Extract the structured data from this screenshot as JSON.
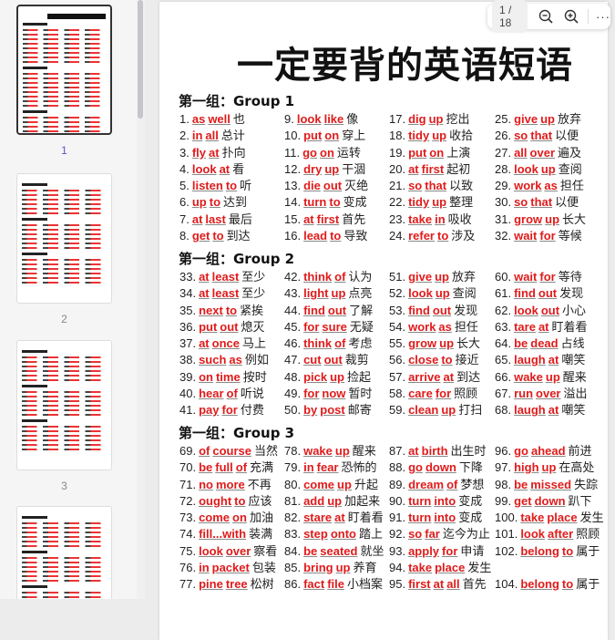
{
  "sidebar": {
    "pages": [
      {
        "label": "1",
        "selected": true
      },
      {
        "label": "2"
      },
      {
        "label": "3"
      },
      {
        "label": ""
      }
    ]
  },
  "document": {
    "title": "一定要背的英语短语",
    "groups": [
      {
        "heading": "第一组：Group 1",
        "columns": [
          [
            {
              "n": "1.",
              "w": [
                "as",
                "well"
              ],
              "cn": "也"
            },
            {
              "n": "2.",
              "w": [
                "in",
                "all"
              ],
              "cn": "总计"
            },
            {
              "n": "3.",
              "w": [
                "fly",
                "at"
              ],
              "cn": "扑向"
            },
            {
              "n": "4.",
              "w": [
                "look",
                "at"
              ],
              "cn": "看"
            },
            {
              "n": "5.",
              "w": [
                "listen",
                "to"
              ],
              "cn": "听"
            },
            {
              "n": "6.",
              "w": [
                "up",
                "to"
              ],
              "cn": "达到"
            },
            {
              "n": "7.",
              "w": [
                "at",
                "last"
              ],
              "cn": "最后"
            },
            {
              "n": "8.",
              "w": [
                "get",
                "to"
              ],
              "cn": "到达"
            }
          ],
          [
            {
              "n": "9.",
              "w": [
                "look",
                "like"
              ],
              "cn": "像"
            },
            {
              "n": "10.",
              "w": [
                "put",
                "on"
              ],
              "cn": "穿上"
            },
            {
              "n": "11.",
              "w": [
                "go",
                "on"
              ],
              "cn": "运转"
            },
            {
              "n": "12.",
              "w": [
                "dry",
                "up"
              ],
              "cn": "干涸"
            },
            {
              "n": "13.",
              "w": [
                "die",
                "out"
              ],
              "cn": "灭绝"
            },
            {
              "n": "14.",
              "w": [
                "turn",
                "to"
              ],
              "cn": "变成"
            },
            {
              "n": "15.",
              "w": [
                "at",
                "first"
              ],
              "cn": "首先"
            },
            {
              "n": "16.",
              "w": [
                "lead",
                "to"
              ],
              "cn": "导致"
            }
          ],
          [
            {
              "n": "17.",
              "w": [
                "dig",
                "up"
              ],
              "cn": "挖出"
            },
            {
              "n": "18.",
              "w": [
                "tidy",
                "up"
              ],
              "cn": "收拾"
            },
            {
              "n": "19.",
              "w": [
                "put",
                "on"
              ],
              "cn": "上演"
            },
            {
              "n": "20.",
              "w": [
                "at",
                "first"
              ],
              "cn": "起初"
            },
            {
              "n": "21.",
              "w": [
                "so",
                "that"
              ],
              "cn": "以致"
            },
            {
              "n": "22.",
              "w": [
                "tidy",
                "up"
              ],
              "cn": "整理"
            },
            {
              "n": "23.",
              "w": [
                "take",
                "in"
              ],
              "cn": "吸收"
            },
            {
              "n": "24.",
              "w": [
                "refer",
                "to"
              ],
              "cn": "涉及"
            }
          ],
          [
            {
              "n": "25.",
              "w": [
                "give",
                "up"
              ],
              "cn": "放弃"
            },
            {
              "n": "26.",
              "w": [
                "so",
                "that"
              ],
              "cn": "以便"
            },
            {
              "n": "27.",
              "w": [
                "all",
                "over"
              ],
              "cn": "遍及"
            },
            {
              "n": "28.",
              "w": [
                "look",
                "up"
              ],
              "cn": "查阅"
            },
            {
              "n": "29.",
              "w": [
                "work",
                "as"
              ],
              "cn": "担任"
            },
            {
              "n": "30.",
              "w": [
                "so",
                "that"
              ],
              "cn": "以便"
            },
            {
              "n": "31.",
              "w": [
                "grow",
                "up"
              ],
              "cn": "长大"
            },
            {
              "n": "32.",
              "w": [
                "wait",
                "for"
              ],
              "cn": "等候"
            }
          ]
        ]
      },
      {
        "heading": "第一组：Group 2",
        "columns": [
          [
            {
              "n": "33.",
              "w": [
                "at",
                "least"
              ],
              "cn": "至少"
            },
            {
              "n": "34.",
              "w": [
                "at",
                "least"
              ],
              "cn": "至少"
            },
            {
              "n": "35.",
              "w": [
                "next",
                "to"
              ],
              "cn": "紧挨"
            },
            {
              "n": "36.",
              "w": [
                "put",
                "out"
              ],
              "cn": "熄灭"
            },
            {
              "n": "37.",
              "w": [
                "at",
                "once"
              ],
              "cn": "马上"
            },
            {
              "n": "38.",
              "w": [
                "such",
                "as"
              ],
              "cn": "例如"
            },
            {
              "n": "39.",
              "w": [
                "on",
                "time"
              ],
              "cn": "按时"
            },
            {
              "n": "40.",
              "w": [
                "hear",
                "of"
              ],
              "cn": "听说"
            },
            {
              "n": "41.",
              "w": [
                "pay",
                "for"
              ],
              "cn": "付费"
            }
          ],
          [
            {
              "n": "42.",
              "w": [
                "think",
                "of"
              ],
              "cn": "认为"
            },
            {
              "n": "43.",
              "w": [
                "light",
                "up"
              ],
              "cn": "点亮"
            },
            {
              "n": "44.",
              "w": [
                "find",
                "out"
              ],
              "cn": "了解"
            },
            {
              "n": "45.",
              "w": [
                "for",
                "sure"
              ],
              "cn": "无疑"
            },
            {
              "n": "46.",
              "w": [
                "think",
                "of"
              ],
              "cn": "考虑"
            },
            {
              "n": "47.",
              "w": [
                "cut",
                "out"
              ],
              "cn": "裁剪"
            },
            {
              "n": "48.",
              "w": [
                "pick",
                "up"
              ],
              "cn": "捡起"
            },
            {
              "n": "49.",
              "w": [
                "for",
                "now"
              ],
              "cn": "暂时"
            },
            {
              "n": "50.",
              "w": [
                "by",
                "post"
              ],
              "cn": "邮寄"
            }
          ],
          [
            {
              "n": "51.",
              "w": [
                "give",
                "up"
              ],
              "cn": "放弃"
            },
            {
              "n": "52.",
              "w": [
                "look",
                "up"
              ],
              "cn": "查阅"
            },
            {
              "n": "53.",
              "w": [
                "find",
                "out"
              ],
              "cn": "发现"
            },
            {
              "n": "54.",
              "w": [
                "work",
                "as"
              ],
              "cn": "担任"
            },
            {
              "n": "55.",
              "w": [
                "grow",
                "up"
              ],
              "cn": "长大"
            },
            {
              "n": "56.",
              "w": [
                "close",
                "to"
              ],
              "cn": "接近"
            },
            {
              "n": "57.",
              "w": [
                "arrive",
                "at"
              ],
              "cn": "到达"
            },
            {
              "n": "58.",
              "w": [
                "care",
                "for"
              ],
              "cn": "照顾"
            },
            {
              "n": "59.",
              "w": [
                "clean",
                "up"
              ],
              "cn": "打扫"
            }
          ],
          [
            {
              "n": "60.",
              "w": [
                "wait",
                "for"
              ],
              "cn": "等待"
            },
            {
              "n": "61.",
              "w": [
                "find",
                "out"
              ],
              "cn": "发现"
            },
            {
              "n": "62.",
              "w": [
                "look",
                "out"
              ],
              "cn": "小心"
            },
            {
              "n": "63.",
              "w": [
                "tare",
                "at"
              ],
              "cn": "盯着看"
            },
            {
              "n": "64.",
              "w": [
                "be",
                "dead"
              ],
              "cn": "占线"
            },
            {
              "n": "65.",
              "w": [
                "laugh",
                "at"
              ],
              "cn": "嘲笑"
            },
            {
              "n": "66.",
              "w": [
                "wake",
                "up"
              ],
              "cn": "醒来"
            },
            {
              "n": "67.",
              "w": [
                "run",
                "over"
              ],
              "cn": "溢出"
            },
            {
              "n": "68.",
              "w": [
                "laugh",
                "at"
              ],
              "cn": "嘲笑"
            }
          ]
        ]
      },
      {
        "heading": "第一组：Group 3",
        "columns": [
          [
            {
              "n": "69.",
              "w": [
                "of",
                "course"
              ],
              "cn": "当然"
            },
            {
              "n": "70.",
              "w": [
                "be",
                "full",
                "of"
              ],
              "cn": "充满"
            },
            {
              "n": "71.",
              "w": [
                "no",
                "more"
              ],
              "cn": "不再"
            },
            {
              "n": "72.",
              "w": [
                "ought",
                "to"
              ],
              "cn": "应该"
            },
            {
              "n": "73.",
              "w": [
                "come",
                "on"
              ],
              "cn": "加油"
            },
            {
              "n": "74.",
              "w": [
                "fill...with"
              ],
              "cn": "装满"
            },
            {
              "n": "75.",
              "w": [
                "look",
                "over"
              ],
              "cn": "察看"
            },
            {
              "n": "76.",
              "w": [
                "in",
                "packet"
              ],
              "cn": "包装"
            },
            {
              "n": "77.",
              "w": [
                "pine",
                "tree"
              ],
              "cn": "松树"
            }
          ],
          [
            {
              "n": "78.",
              "w": [
                "wake",
                "up"
              ],
              "cn": "醒来"
            },
            {
              "n": "79.",
              "w": [
                "in",
                "fear"
              ],
              "cn": "恐怖的"
            },
            {
              "n": "80.",
              "w": [
                "come",
                "up"
              ],
              "cn": "升起"
            },
            {
              "n": "81.",
              "w": [
                "add",
                "up"
              ],
              "cn": "加起来"
            },
            {
              "n": "82.",
              "w": [
                "stare",
                "at"
              ],
              "cn": "盯着看"
            },
            {
              "n": "83.",
              "w": [
                "step",
                "onto"
              ],
              "cn": "踏上"
            },
            {
              "n": "84.",
              "w": [
                "be",
                "seated"
              ],
              "cn": "就坐"
            },
            {
              "n": "85.",
              "w": [
                "bring",
                "up"
              ],
              "cn": "养育"
            },
            {
              "n": "86.",
              "w": [
                "fact",
                "file"
              ],
              "cn": "小档案"
            }
          ],
          [
            {
              "n": "87.",
              "w": [
                "at",
                "birth"
              ],
              "cn": "出生时"
            },
            {
              "n": "88.",
              "w": [
                "go",
                "down"
              ],
              "cn": "下降"
            },
            {
              "n": "89.",
              "w": [
                "dream",
                "of"
              ],
              "cn": "梦想"
            },
            {
              "n": "90.",
              "w": [
                "turn",
                "into"
              ],
              "cn": "变成"
            },
            {
              "n": "91.",
              "w": [
                "turn",
                "into"
              ],
              "cn": "变成"
            },
            {
              "n": "92.",
              "w": [
                "so",
                "far"
              ],
              "cn": "迄今为止"
            },
            {
              "n": "93.",
              "w": [
                "apply",
                "for"
              ],
              "cn": "申请"
            },
            {
              "n": "94.",
              "w": [
                "take",
                "place"
              ],
              "cn": "发生"
            },
            {
              "n": "95.",
              "w": [
                "first",
                "at",
                "all"
              ],
              "cn": "首先"
            }
          ],
          [
            {
              "n": "96.",
              "w": [
                "go",
                "ahead"
              ],
              "cn": "前进"
            },
            {
              "n": "97.",
              "w": [
                "high",
                "up"
              ],
              "cn": "在高处"
            },
            {
              "n": "98.",
              "w": [
                "be",
                "missed"
              ],
              "cn": "失踪"
            },
            {
              "n": "99.",
              "w": [
                "get",
                "down"
              ],
              "cn": "趴下"
            },
            {
              "n": "100.",
              "w": [
                "take",
                "place"
              ],
              "cn": "发生"
            },
            {
              "n": "101.",
              "w": [
                "look",
                "after"
              ],
              "cn": "照顾"
            },
            {
              "n": "102.",
              "w": [
                "belong",
                "to"
              ],
              "cn": "属于"
            },
            {
              "n": "",
              "w": [],
              "cn": ""
            },
            {
              "n": "104.",
              "w": [
                "belong",
                "to"
              ],
              "cn": "属于"
            }
          ]
        ]
      }
    ]
  },
  "toolbar": {
    "page_indicator": "1 / 18",
    "more": "···"
  },
  "colors": {
    "phrase": "#e01b1b",
    "selected_page_label": "#5a55c8"
  }
}
